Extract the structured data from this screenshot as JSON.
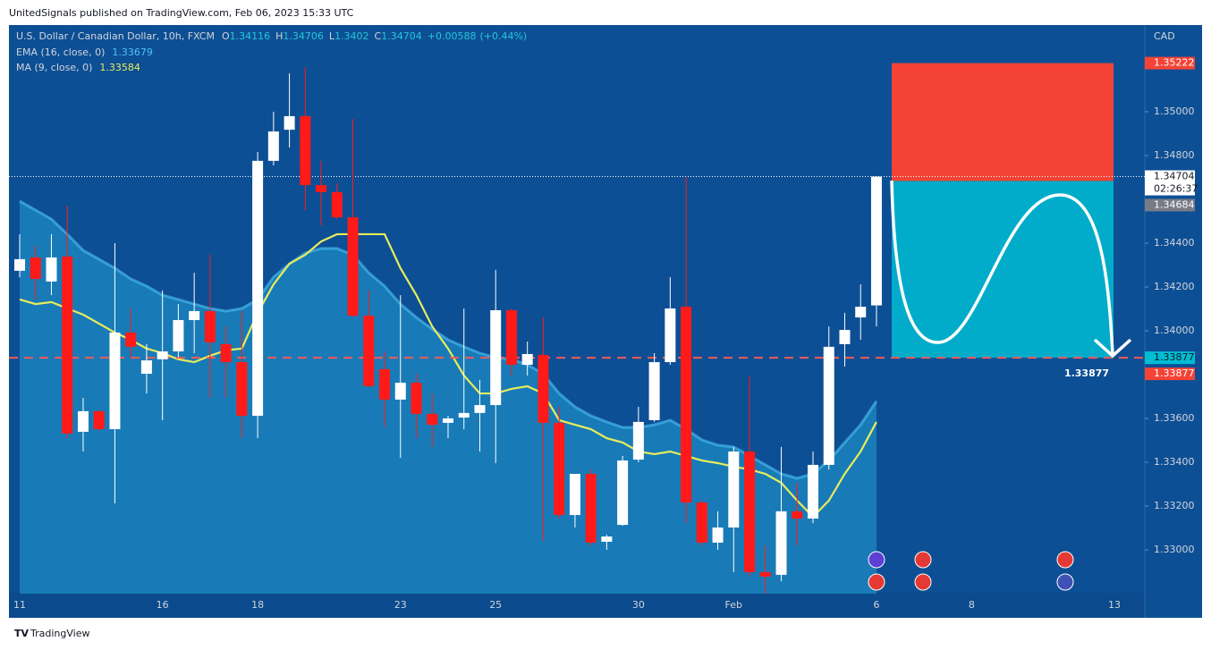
{
  "header": {
    "published": "UnitedSignals published on TradingView.com, Feb 06, 2023 15:33 UTC",
    "footer": "TradingView"
  },
  "chart_data": {
    "type": "candlestick",
    "symbol": "U.S. Dollar / Canadian Dollar, 10h, FXCM",
    "ohlc_labels": [
      "O",
      "H",
      "L",
      "C"
    ],
    "change": {
      "value": 0.00588,
      "label": "+0.00588"
    },
    "change_pct": {
      "value": 0.44,
      "label": "(+0.44%)"
    },
    "currency": "CAD",
    "countdown": "02:26:37",
    "up_color": "#ffffff",
    "down_color": "#ff1a1a",
    "categories": [
      "11",
      null,
      null,
      null,
      null,
      null,
      null,
      null,
      null,
      "16",
      null,
      null,
      null,
      null,
      null,
      "18",
      null,
      null,
      null,
      null,
      null,
      null,
      null,
      null,
      "23",
      null,
      null,
      null,
      null,
      null,
      "25",
      null,
      null,
      null,
      null,
      null,
      null,
      null,
      null,
      "30",
      null,
      null,
      null,
      null,
      null,
      "Feb",
      null,
      null,
      null,
      null,
      null,
      null,
      null,
      null,
      "6",
      null,
      null,
      null,
      null,
      null,
      "8",
      null,
      null,
      null,
      null,
      null,
      null,
      null,
      null,
      "13"
    ],
    "open": [
      1.34274,
      1.34335,
      1.34225,
      1.34339,
      1.33539,
      1.33633,
      1.33551,
      1.33992,
      1.33804,
      1.3387,
      1.33906,
      1.34049,
      1.3409,
      1.33939,
      1.33857,
      1.33612,
      1.34776,
      1.34918,
      1.3498,
      1.34665,
      1.34633,
      1.34518,
      1.34069,
      1.33825,
      1.33686,
      1.33763,
      1.33621,
      1.3358,
      1.33604,
      1.33625,
      1.33661,
      1.34094,
      1.33845,
      1.3389,
      1.3358,
      1.33159,
      1.33347,
      1.33037,
      1.33114,
      1.33412,
      1.33592,
      1.33857,
      1.3411,
      1.33216,
      1.33033,
      1.33102,
      1.33449,
      1.32898,
      1.32886,
      1.33176,
      1.33143,
      1.33388,
      1.33939,
      1.34061,
      1.34116,
      null,
      null,
      null,
      null,
      null,
      null,
      null,
      null,
      null,
      null,
      null,
      null,
      null,
      null,
      null
    ],
    "high": [
      1.34441,
      1.34388,
      1.34441,
      1.34571,
      1.33694,
      1.3364,
      1.344,
      1.34102,
      1.33939,
      1.34184,
      1.34122,
      1.34265,
      1.34347,
      1.3402,
      1.3409,
      1.34816,
      1.35,
      1.35175,
      1.35204,
      1.34776,
      1.34674,
      1.34967,
      1.34184,
      1.33906,
      1.34163,
      1.33804,
      1.33714,
      1.33612,
      1.34102,
      1.33776,
      1.34278,
      1.34102,
      1.33951,
      1.34061,
      1.33653,
      1.33347,
      1.33367,
      1.33069,
      1.33429,
      1.33653,
      1.33898,
      1.34245,
      1.34702,
      1.33225,
      1.33176,
      1.3347,
      1.33796,
      1.3302,
      1.3347,
      1.33306,
      1.33449,
      1.3402,
      1.34082,
      1.34212,
      1.34706,
      null,
      null,
      null,
      null,
      null,
      null,
      null,
      null,
      null,
      null,
      null,
      null,
      null,
      null,
      null
    ],
    "low": [
      1.34245,
      1.34143,
      1.34163,
      1.3351,
      1.33449,
      1.33545,
      1.33212,
      1.33878,
      1.33714,
      1.33592,
      1.33878,
      1.33898,
      1.33694,
      1.33694,
      1.3351,
      1.3351,
      1.34755,
      1.34837,
      1.34551,
      1.34482,
      1.3451,
      1.34061,
      1.33743,
      1.33559,
      1.3342,
      1.3351,
      1.3347,
      1.3351,
      1.33551,
      1.33449,
      1.33396,
      1.33796,
      1.33796,
      1.33041,
      1.33143,
      1.33102,
      1.3302,
      1.33,
      1.3311,
      1.334,
      1.33584,
      1.33845,
      1.33122,
      1.3302,
      1.33,
      1.32898,
      1.32878,
      1.328,
      1.32857,
      1.3302,
      1.33122,
      1.33367,
      1.33837,
      1.33959,
      1.3402,
      null,
      null,
      null,
      null,
      null,
      null,
      null,
      null,
      null,
      null,
      null,
      null,
      null,
      null,
      null
    ],
    "close": [
      1.34327,
      1.34237,
      1.34335,
      1.33531,
      1.33633,
      1.33551,
      1.33992,
      1.33927,
      1.33865,
      1.33906,
      1.34049,
      1.3409,
      1.33947,
      1.33857,
      1.33612,
      1.34776,
      1.3491,
      1.3498,
      1.34665,
      1.34633,
      1.34518,
      1.34069,
      1.33747,
      1.33686,
      1.33763,
      1.33621,
      1.33571,
      1.336,
      1.33625,
      1.33661,
      1.34094,
      1.33845,
      1.33894,
      1.3358,
      1.33159,
      1.33347,
      1.33033,
      1.33061,
      1.33408,
      1.33584,
      1.33857,
      1.34102,
      1.33216,
      1.33033,
      1.33102,
      1.33449,
      1.32898,
      1.32878,
      1.33176,
      1.33143,
      1.33388,
      1.33927,
      1.34004,
      1.3411,
      1.34704,
      null,
      null,
      null,
      null,
      null,
      null,
      null,
      null,
      null,
      null,
      null,
      null,
      null,
      null,
      null
    ],
    "series": [
      {
        "name": "EMA (16, close, 0)",
        "color": "#4fc3f7",
        "values": [
          1.34592,
          1.34551,
          1.3451,
          1.34441,
          1.34367,
          1.34327,
          1.34286,
          1.34237,
          1.34204,
          1.34163,
          1.34143,
          1.34122,
          1.34102,
          1.3409,
          1.34102,
          1.34143,
          1.34245,
          1.34306,
          1.34355,
          1.34376,
          1.34376,
          1.34347,
          1.34265,
          1.34204,
          1.34122,
          1.34061,
          1.34008,
          1.33959,
          1.33927,
          1.33898,
          1.33878,
          1.3387,
          1.33845,
          1.33804,
          1.33714,
          1.33653,
          1.33612,
          1.33584,
          1.33559,
          1.33559,
          1.33571,
          1.33592,
          1.33551,
          1.33502,
          1.33478,
          1.3347,
          1.33429,
          1.33388,
          1.33347,
          1.33327,
          1.33347,
          1.33408,
          1.3349,
          1.33571,
          1.33679,
          null,
          null,
          null,
          null,
          null,
          null,
          null,
          null,
          null,
          null,
          null,
          null,
          null,
          null,
          null
        ]
      },
      {
        "name": "MA (9, close, 0)",
        "color": "#e8ec5c",
        "values": [
          1.34143,
          1.34122,
          1.34131,
          1.34102,
          1.34074,
          1.34033,
          1.33992,
          1.33959,
          1.33919,
          1.33898,
          1.3387,
          1.33857,
          1.33886,
          1.33911,
          1.33919,
          1.34082,
          1.34212,
          1.34306,
          1.34347,
          1.34408,
          1.34441,
          1.34441,
          1.34441,
          1.34441,
          1.34286,
          1.34163,
          1.3402,
          1.33919,
          1.33796,
          1.33714,
          1.33714,
          1.33735,
          1.33747,
          1.33714,
          1.33592,
          1.33571,
          1.33551,
          1.3351,
          1.3349,
          1.33449,
          1.33437,
          1.33449,
          1.33429,
          1.33408,
          1.33396,
          1.3338,
          1.33367,
          1.33347,
          1.33306,
          1.33225,
          1.33151,
          1.33225,
          1.33347,
          1.33449,
          1.33584,
          null,
          null,
          null,
          null,
          null,
          null,
          null,
          null,
          null,
          null,
          null,
          null,
          null,
          null,
          null
        ]
      }
    ],
    "ylim": [
      1.328,
      1.354
    ],
    "yticks": [
      {
        "value": 1.33,
        "label": "1.33000"
      },
      {
        "value": 1.332,
        "label": "1.33200"
      },
      {
        "value": 1.334,
        "label": "1.33400"
      },
      {
        "value": 1.336,
        "label": "1.33600"
      },
      {
        "value": 1.34,
        "label": "1.34000"
      },
      {
        "value": 1.342,
        "label": "1.34200"
      },
      {
        "value": 1.344,
        "label": "1.34400"
      },
      {
        "value": 1.348,
        "label": "1.34800"
      },
      {
        "value": 1.35,
        "label": "1.35000"
      }
    ],
    "position": {
      "stop": 1.35222,
      "entry": 1.34684,
      "target": 1.33877
    }
  }
}
